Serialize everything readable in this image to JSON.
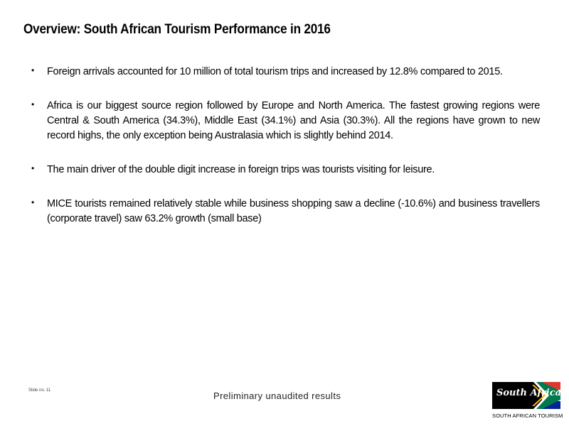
{
  "slide": {
    "title": "Overview: South African Tourism Performance in 2016",
    "bullets": [
      "Foreign arrivals accounted for 10 million of total tourism trips and increased by 12.8% compared to 2015.",
      "Africa is our biggest source region followed by Europe and North America. The fastest growing regions were Central & South America (34.3%), Middle East (34.1%) and Asia (30.3%). All the regions have grown to new record highs, the only exception being Australasia which is slightly behind 2014.",
      "The main driver of the double digit increase in foreign trips was tourists visiting for leisure.",
      "MICE tourists remained relatively stable while business shopping saw a decline (-10.6%) and business travellers (corporate travel) saw 63.2% growth (small base)"
    ],
    "bullet_symbol": "•",
    "slide_number": "Slide no. 11",
    "footer_note": "Preliminary unaudited results"
  },
  "logo": {
    "script_text": "South Africa",
    "caption": "SOUTH AFRICAN TOURISM",
    "flag_colors": {
      "black": "#000000",
      "green": "#007A4D",
      "yellow": "#FFB612",
      "red": "#DE3831",
      "blue": "#002395",
      "white": "#FFFFFF"
    }
  }
}
